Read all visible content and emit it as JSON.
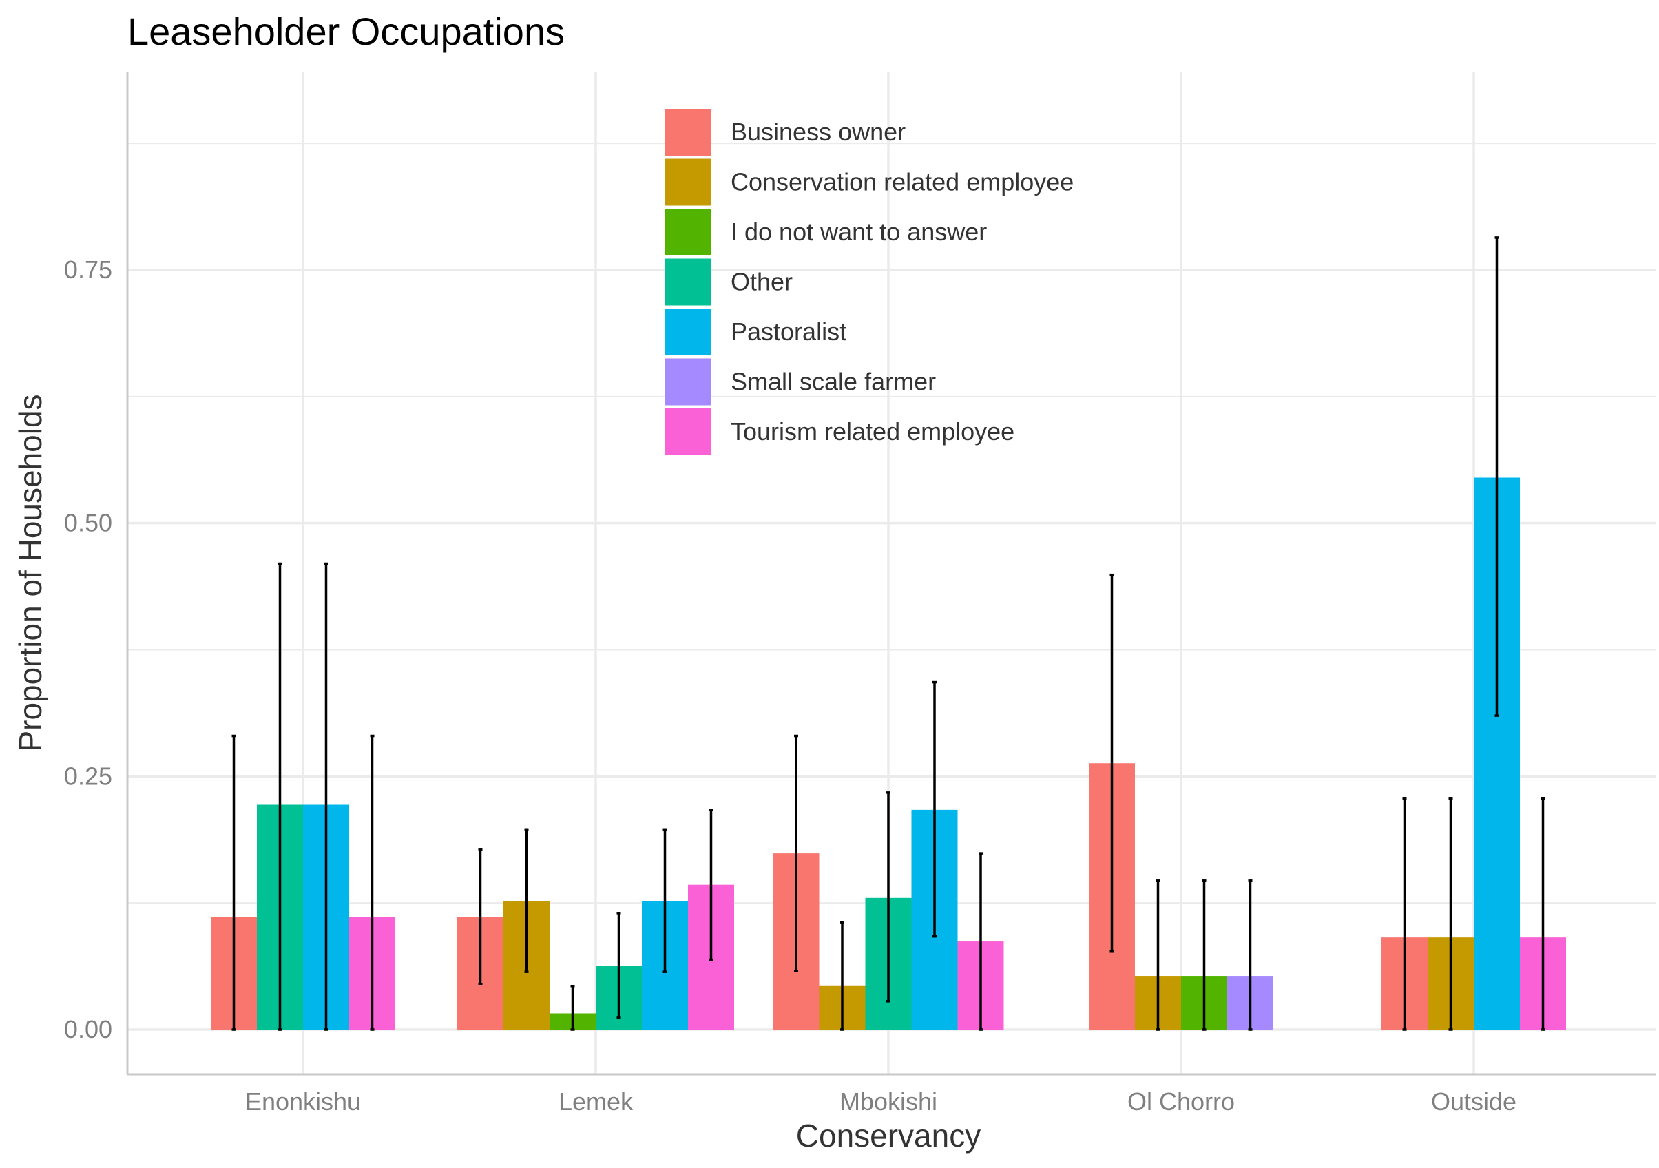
{
  "chart_data": {
    "type": "bar",
    "title": "Leaseholder Occupations",
    "xlabel": "Conservancy",
    "ylabel": "Proportion of Households",
    "categories": [
      "Enonkishu",
      "Lemek",
      "Mbokishi",
      "Ol Chorro",
      "Outside"
    ],
    "ylim": [
      -0.09,
      0.95
    ],
    "yticks": [
      0,
      0.25,
      0.5,
      0.75
    ],
    "ytick_labels": [
      "0.00",
      "0.25",
      "0.50",
      "0.75"
    ],
    "grid": true,
    "legend_position": "top-center (inside plot)",
    "error_bars": true,
    "series": [
      {
        "name": "Business owner",
        "color": "#F8766D",
        "values": [
          0.111,
          0.111,
          0.174,
          0.263,
          0.091
        ],
        "err_low": [
          0.0,
          0.045,
          0.058,
          0.077,
          0.0
        ],
        "err_high": [
          0.29,
          0.178,
          0.29,
          0.449,
          0.228
        ]
      },
      {
        "name": "Conservation related employee",
        "color": "#C49A00",
        "values": [
          null,
          0.127,
          0.043,
          0.053,
          0.091
        ],
        "err_low": [
          null,
          0.057,
          0.0,
          0.0,
          0.0
        ],
        "err_high": [
          null,
          0.197,
          0.106,
          0.147,
          0.228
        ]
      },
      {
        "name": "I do not want to answer",
        "color": "#53B400",
        "values": [
          null,
          0.016,
          null,
          0.053,
          null
        ],
        "err_low": [
          null,
          0.0,
          null,
          0.0,
          null
        ],
        "err_high": [
          null,
          0.043,
          null,
          0.147,
          null
        ]
      },
      {
        "name": "Other",
        "color": "#00C094",
        "values": [
          0.222,
          0.063,
          0.13,
          null,
          null
        ],
        "err_low": [
          0.0,
          0.012,
          0.028,
          null,
          null
        ],
        "err_high": [
          0.46,
          0.115,
          0.234,
          null,
          null
        ]
      },
      {
        "name": "Pastoralist",
        "color": "#00B6EB",
        "values": [
          0.222,
          0.127,
          0.217,
          null,
          0.545
        ],
        "err_low": [
          0.0,
          0.057,
          0.092,
          null,
          0.31
        ],
        "err_high": [
          0.46,
          0.197,
          0.343,
          null,
          0.782
        ]
      },
      {
        "name": "Small scale farmer",
        "color": "#A58AFF",
        "values": [
          null,
          null,
          null,
          0.053,
          null
        ],
        "err_low": [
          null,
          null,
          null,
          0.0,
          null
        ],
        "err_high": [
          null,
          null,
          null,
          0.147,
          null
        ]
      },
      {
        "name": "Tourism related employee",
        "color": "#FB61D7",
        "values": [
          0.111,
          0.143,
          0.087,
          null,
          0.091
        ],
        "err_low": [
          0.0,
          0.069,
          0.0,
          null,
          0.0
        ],
        "err_high": [
          0.29,
          0.217,
          0.174,
          null,
          0.228
        ]
      }
    ],
    "colors": {
      "background": "#FFFFFF",
      "grid": "#EBEBEB",
      "axis_line": "#C8C8C8",
      "error_bar": "#000000"
    }
  }
}
